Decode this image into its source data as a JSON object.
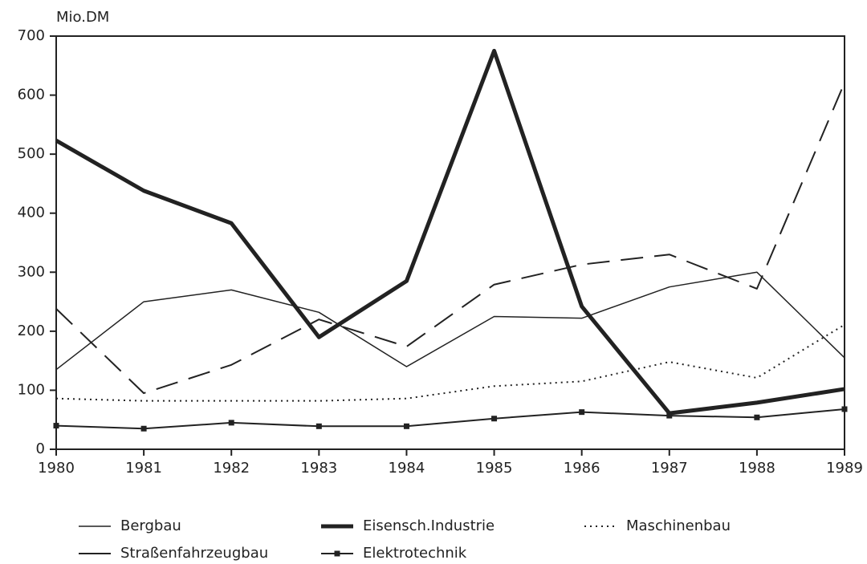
{
  "chart_data": {
    "type": "line",
    "y_label": "Mio.DM",
    "categories": [
      "1980",
      "1981",
      "1982",
      "1983",
      "1984",
      "1985",
      "1986",
      "1987",
      "1988",
      "1989"
    ],
    "ylim": [
      0,
      700
    ],
    "yticks": [
      0,
      100,
      200,
      300,
      400,
      500,
      600,
      700
    ],
    "series": [
      {
        "name": "Bergbau",
        "color": "#222222",
        "style": "solid",
        "width": 1.5,
        "marker": false,
        "values": [
          135,
          250,
          270,
          232,
          140,
          225,
          222,
          275,
          300,
          155
        ]
      },
      {
        "name": "Eisensch.Industrie",
        "color": "#222222",
        "style": "solid",
        "width": 5,
        "marker": false,
        "values": [
          523,
          438,
          383,
          190,
          285,
          675,
          242,
          61,
          79,
          102
        ]
      },
      {
        "name": "Maschinenbau",
        "color": "#222222",
        "style": "dotted",
        "width": 2,
        "marker": false,
        "values": [
          86,
          82,
          82,
          82,
          86,
          107,
          115,
          148,
          121,
          211
        ]
      },
      {
        "name": "Straßenfahrzeugbau",
        "color": "#222222",
        "style": "dashed",
        "width": 2,
        "marker": false,
        "values": [
          238,
          95,
          143,
          220,
          174,
          279,
          313,
          330,
          272,
          621
        ]
      },
      {
        "name": "Elektrotechnik",
        "color": "#222222",
        "style": "solid",
        "width": 2,
        "marker": true,
        "values": [
          40,
          35,
          45,
          39,
          39,
          52,
          63,
          57,
          54,
          68
        ]
      }
    ]
  }
}
